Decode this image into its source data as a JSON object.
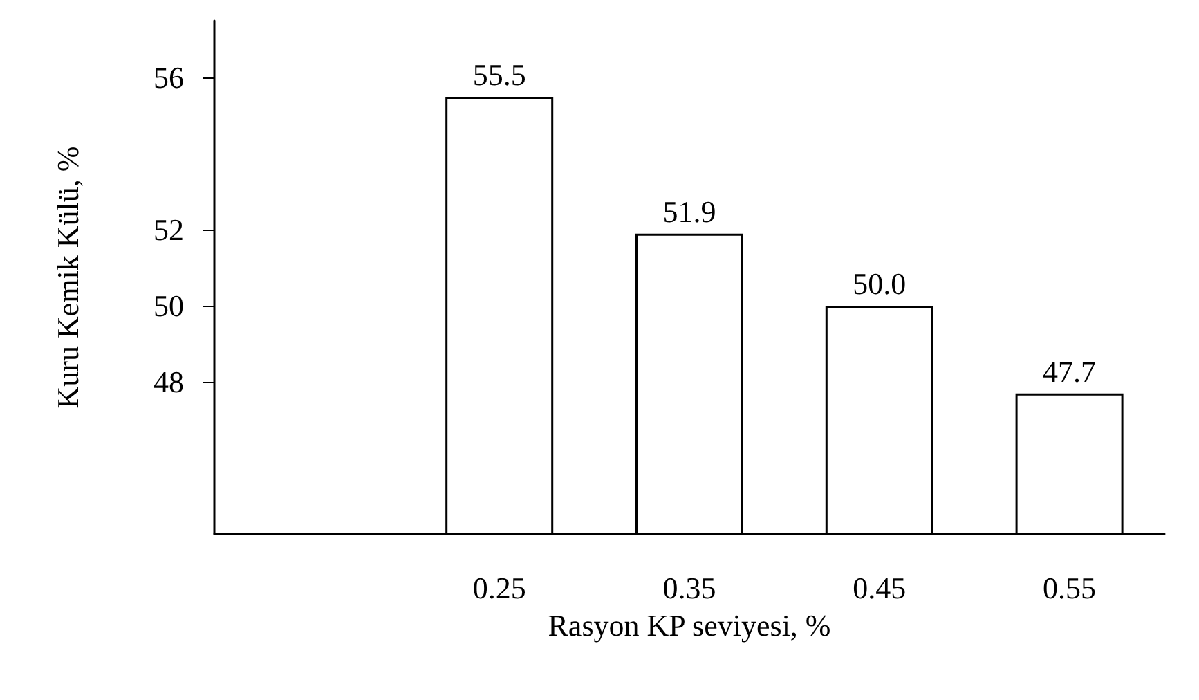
{
  "chart_data": {
    "type": "bar",
    "xlabel": "Rasyon KP seviyesi, %",
    "ylabel": "Kuru Kemik Külü, %",
    "categories": [
      null,
      "0.25",
      "0.35",
      "0.45",
      "0.55"
    ],
    "values": [
      null,
      55.5,
      51.9,
      50.0,
      47.7
    ],
    "color": "#ffffff",
    "ylim": [
      44,
      57.5
    ],
    "yticks": [
      48,
      50,
      52,
      56
    ],
    "value_labels": [
      null,
      "55.5",
      "51.9",
      "50.0",
      "47.7"
    ],
    "grid": false
  }
}
